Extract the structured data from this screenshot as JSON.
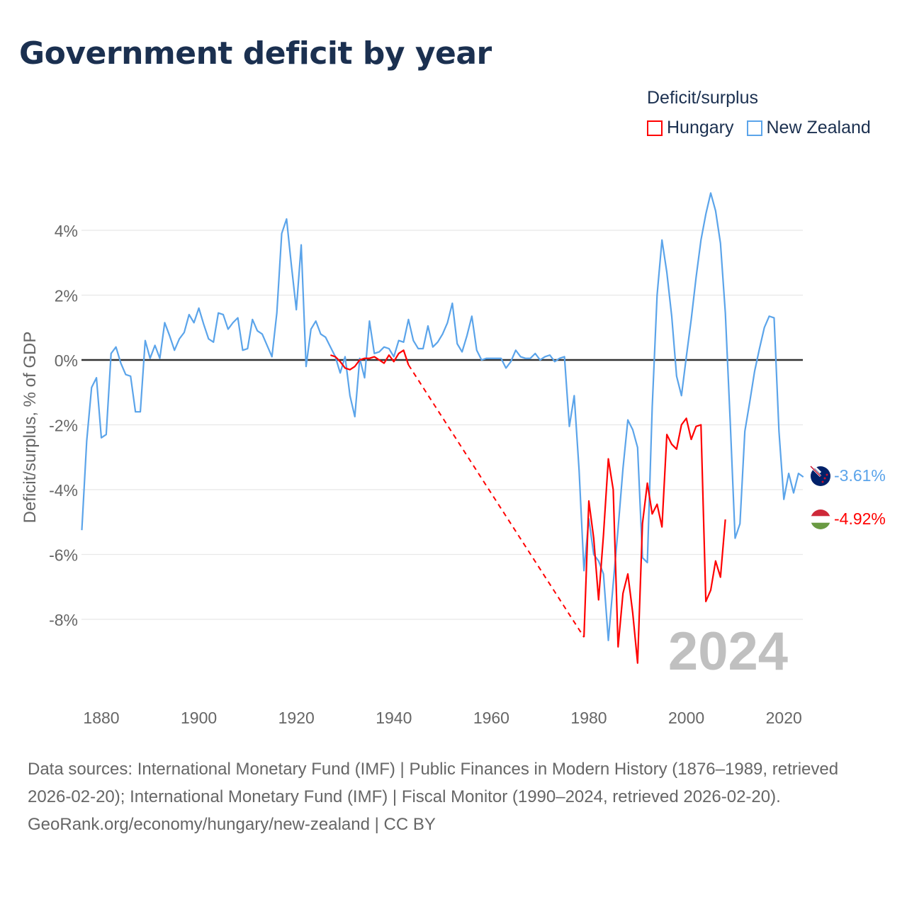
{
  "title": "Government deficit by year",
  "legend": {
    "title": "Deficit/surplus",
    "items": [
      {
        "name": "Hungary",
        "color": "#ff0000"
      },
      {
        "name": "New Zealand",
        "color": "#5ba4ea"
      }
    ]
  },
  "watermark_year": "2024",
  "end_labels": {
    "new_zealand": "-3.61%",
    "hungary": "-4.92%"
  },
  "footer": {
    "sources": "Data sources: International Monetary Fund (IMF) | Public Finances in Modern History (1876–1989, retrieved 2026-02-20); International Monetary Fund (IMF) | Fiscal Monitor (1990–2024, retrieved 2026-02-20).",
    "credit": "GeoRank.org/economy/hungary/new-zealand | CC BY"
  },
  "chart_data": {
    "type": "line",
    "title": "Government deficit by year",
    "xlabel": "",
    "ylabel": "Deficit/surplus, % of GDP",
    "xlim": [
      1876,
      2024
    ],
    "ylim": [
      -10,
      5.5
    ],
    "xticks": [
      1880,
      1900,
      1920,
      1940,
      1960,
      1980,
      2000,
      2020
    ],
    "yticks": [
      4,
      2,
      0,
      -2,
      -4,
      -6,
      -8
    ],
    "ytick_labels": [
      "4%",
      "2%",
      "0%",
      "-2%",
      "-4%",
      "-6%",
      "-8%"
    ],
    "grid": true,
    "legend_position": "top-right",
    "series": [
      {
        "name": "New Zealand",
        "color": "#5ba4ea",
        "start_year": 1876,
        "values": [
          -5.25,
          -2.5,
          -0.85,
          -0.55,
          -2.4,
          -2.3,
          0.2,
          0.4,
          -0.1,
          -0.45,
          -0.5,
          -1.6,
          -1.6,
          0.6,
          0.05,
          0.45,
          0.05,
          1.15,
          0.75,
          0.3,
          0.65,
          0.85,
          1.4,
          1.15,
          1.6,
          1.1,
          0.65,
          0.55,
          1.45,
          1.4,
          0.95,
          1.15,
          1.3,
          0.3,
          0.35,
          1.25,
          0.9,
          0.8,
          0.45,
          0.1,
          1.45,
          3.9,
          4.35,
          2.9,
          1.55,
          3.55,
          -0.2,
          0.95,
          1.2,
          0.8,
          0.7,
          0.4,
          0.1,
          -0.4,
          0.1,
          -1.1,
          -1.75,
          0.05,
          -0.55,
          1.2,
          0.2,
          0.25,
          0.4,
          0.35,
          0.1,
          0.6,
          0.55,
          1.25,
          0.6,
          0.35,
          0.35,
          1.05,
          0.4,
          0.55,
          0.8,
          1.15,
          1.75,
          0.5,
          0.25,
          0.75,
          1.35,
          0.3,
          0.0,
          0.05,
          0.05,
          0.05,
          0.05,
          -0.25,
          -0.05,
          0.3,
          0.1,
          0.05,
          0.05,
          0.2,
          0.0,
          0.1,
          0.15,
          -0.05,
          0.05,
          0.1,
          -2.05,
          -1.1,
          -3.4,
          -6.5,
          -4.9,
          -6.0,
          -6.2,
          -6.6,
          -8.65,
          -6.9,
          -5.2,
          -3.35,
          -1.85,
          -2.15,
          -2.7,
          -6.1,
          -6.25,
          -1.45,
          2.0,
          3.7,
          2.7,
          1.35,
          -0.5,
          -1.1,
          0.1,
          1.25,
          2.55,
          3.7,
          4.5,
          5.15,
          4.6,
          3.6,
          1.45,
          -1.9,
          -5.5,
          -5.05,
          -2.2,
          -1.3,
          -0.35,
          0.35,
          1.0,
          1.35,
          1.3,
          -2.2,
          -4.3,
          -3.5,
          -4.1,
          -3.5,
          -3.61
        ]
      },
      {
        "name": "Hungary",
        "color": "#ff0000",
        "start_year": 1927,
        "values": [
          0.15,
          0.1,
          -0.05,
          -0.25,
          -0.3,
          -0.2,
          0.0,
          0.05,
          0.05,
          0.1,
          0.0,
          -0.1,
          0.15,
          -0.05,
          0.2,
          0.3,
          -0.15,
          null,
          null,
          null,
          null,
          null,
          null,
          null,
          null,
          null,
          null,
          null,
          null,
          null,
          null,
          null,
          null,
          null,
          null,
          null,
          null,
          null,
          null,
          null,
          null,
          null,
          null,
          null,
          null,
          null,
          null,
          null,
          null,
          null,
          null,
          null,
          -8.55,
          -4.35,
          -5.5,
          -7.4,
          -5.4,
          -3.05,
          -4.0,
          -8.85,
          -7.2,
          -6.6,
          -7.8,
          -9.35,
          -5.05,
          -3.8,
          -4.75,
          -4.45,
          -5.15,
          -2.3,
          -2.6,
          -2.75,
          -2.0,
          -1.8,
          -2.45,
          -2.05,
          -2.0,
          -7.45,
          -7.1,
          -6.2,
          -6.7,
          -4.92
        ]
      }
    ]
  }
}
